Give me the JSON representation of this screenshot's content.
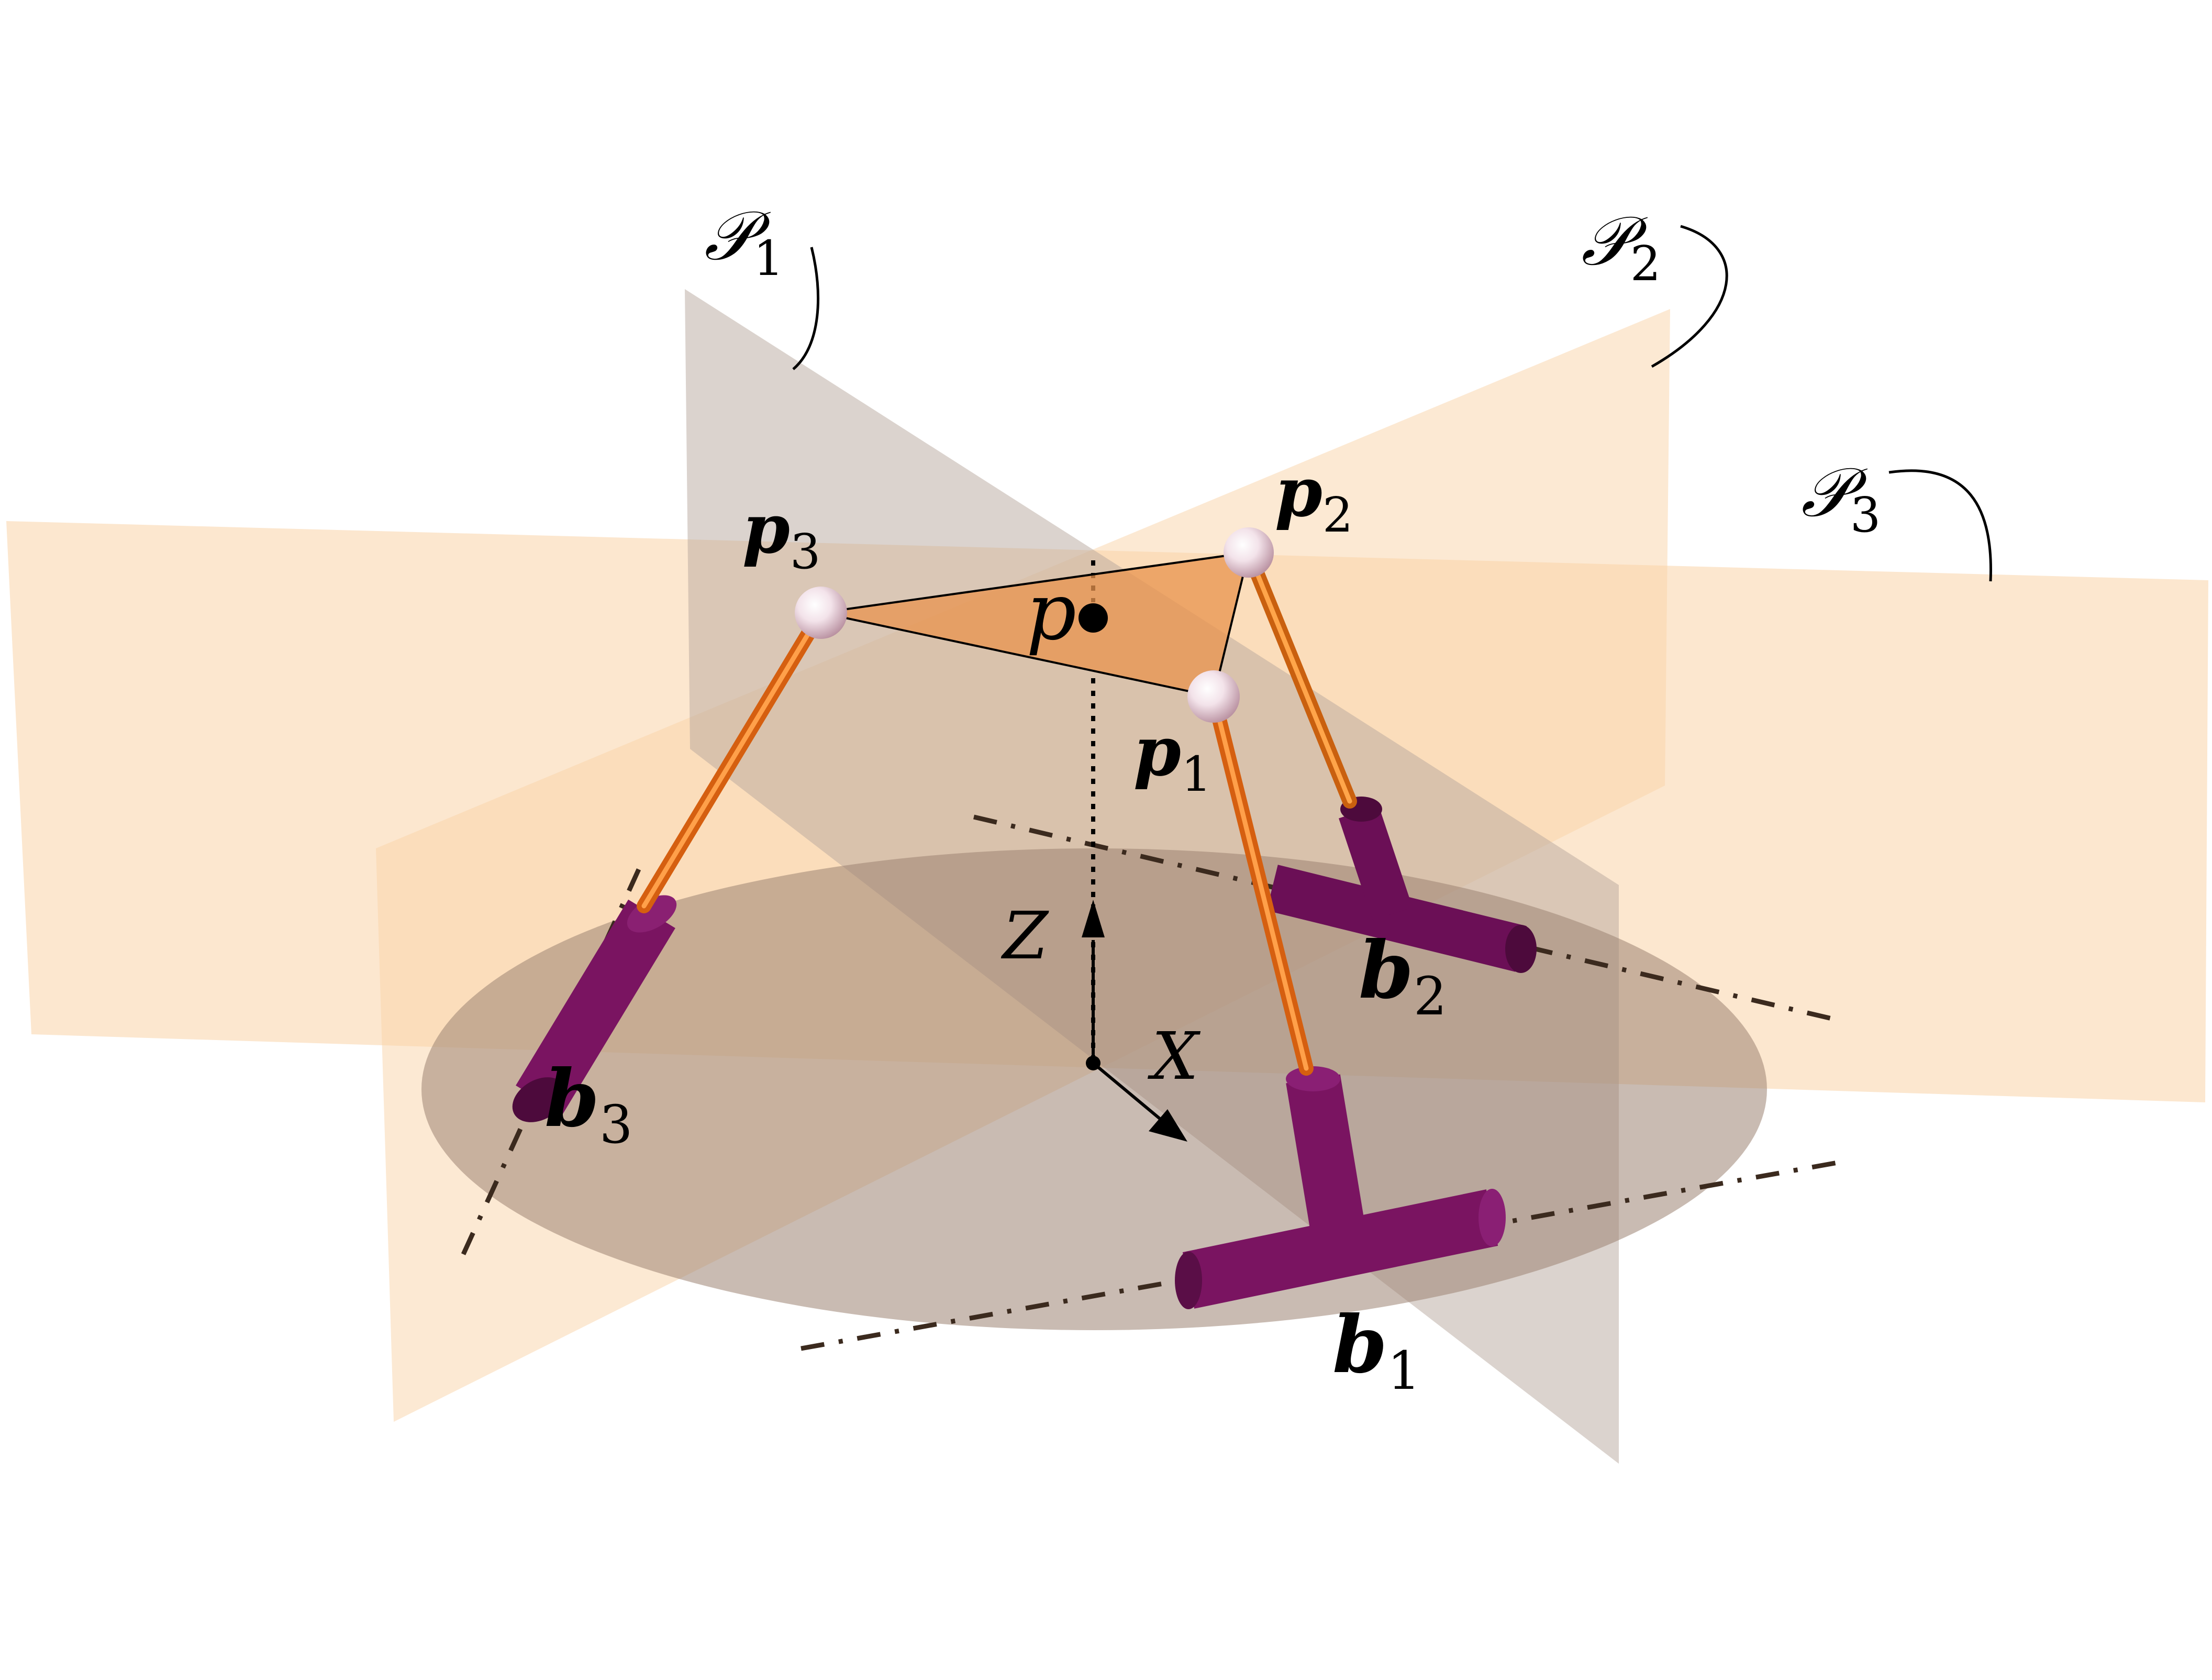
{
  "labels": {
    "plane1": "𝒫",
    "plane1_sub": "1",
    "plane2": "𝒫",
    "plane2_sub": "2",
    "plane3": "𝒫",
    "plane3_sub": "3",
    "p1": "p",
    "p1_sub": "1",
    "p2": "p",
    "p2_sub": "2",
    "p3": "p",
    "p3_sub": "3",
    "p": "p",
    "b1": "b",
    "b1_sub": "1",
    "b2": "b",
    "b2_sub": "2",
    "b3": "b",
    "b3_sub": "3",
    "axis_z": "Z",
    "axis_x": "X"
  },
  "colors": {
    "plane_light": "#f9d3a8",
    "plane_gray": "#b8a89e",
    "disc": "#9d8372",
    "triangle": "#e8934e",
    "rod": "#e8701a",
    "actuator": "#7a1461",
    "actuator_dark": "#4d0a3c",
    "joint": "#f4e8ee"
  }
}
